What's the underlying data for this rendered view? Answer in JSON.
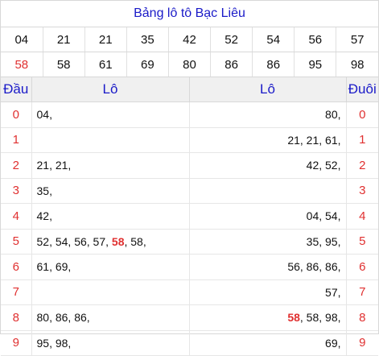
{
  "title": "Bảng lô tô Bạc Liêu",
  "numbers": {
    "row1": [
      "04",
      "21",
      "21",
      "35",
      "42",
      "52",
      "54",
      "56",
      "57"
    ],
    "row2": [
      "58",
      "58",
      "61",
      "69",
      "80",
      "86",
      "86",
      "95",
      "98"
    ],
    "highlight_color": "#e03030"
  },
  "table": {
    "headers": {
      "dau": "Đầu",
      "lo_left": "Lô",
      "lo_right": "Lô",
      "duoi": "Đuôi"
    },
    "rows": [
      {
        "dau": "0",
        "left": "04,",
        "right": "80,",
        "duoi": "0"
      },
      {
        "dau": "1",
        "left": "",
        "right": "21, 21, 61,",
        "duoi": "1"
      },
      {
        "dau": "2",
        "left": "21, 21,",
        "right": "42, 52,",
        "duoi": "2"
      },
      {
        "dau": "3",
        "left": "35,",
        "right": "",
        "duoi": "3"
      },
      {
        "dau": "4",
        "left": "42,",
        "right": "04, 54,",
        "duoi": "4"
      },
      {
        "dau": "5",
        "left_pre": "52, 54, 56, 57, ",
        "left_hl": "58",
        "left_post": ", 58,",
        "right": "35, 95,",
        "duoi": "5"
      },
      {
        "dau": "6",
        "left": "61, 69,",
        "right": "56, 86, 86,",
        "duoi": "6"
      },
      {
        "dau": "7",
        "left": "",
        "right": "57,",
        "duoi": "7"
      },
      {
        "dau": "8",
        "left": "80, 86, 86,",
        "right_hl": "58",
        "right_post": ", 58, 98,",
        "duoi": "8"
      },
      {
        "dau": "9",
        "left": "95, 98,",
        "right": "69,",
        "duoi": "9"
      }
    ]
  }
}
